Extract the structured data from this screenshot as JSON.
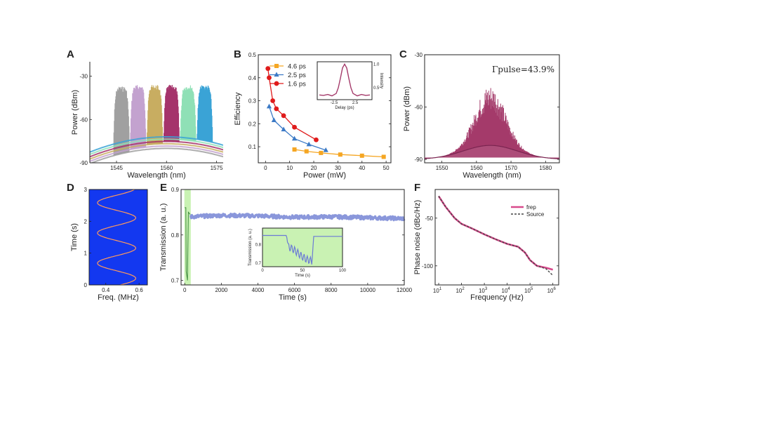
{
  "colors": {
    "maroon": "#a43a6a",
    "blue_panel": "#1338f0",
    "green_shade": "#c9f2b3",
    "trace_blue": "#8a97db",
    "orange": "#f5a623",
    "legend_blue": "#3c7ac6",
    "red": "#e01b1b",
    "pink": "#d84a8c",
    "dark": "#444444",
    "spectra": [
      "#a0a0a0",
      "#c3a2cf",
      "#c8ad61",
      "#a5336b",
      "#8fe0b6",
      "#3aa3d6"
    ]
  },
  "panels": {
    "A": {
      "label": "A"
    },
    "B": {
      "label": "B"
    },
    "C": {
      "label": "C"
    },
    "D": {
      "label": "D"
    },
    "E": {
      "label": "E"
    },
    "F": {
      "label": "F"
    }
  },
  "chart_data": [
    {
      "panel": "A",
      "type": "line",
      "xlabel": "Wavelength (nm)",
      "ylabel": "Power (dBm)",
      "xlim": [
        1537,
        1577
      ],
      "ylim": [
        -90,
        -20
      ],
      "xticks": [
        1545,
        1560,
        1575
      ],
      "yticks": [
        -30,
        -60,
        -90
      ],
      "xtick_labels": [
        "1545",
        "1560",
        "1575"
      ],
      "ytick_labels": [
        "-30",
        "-60",
        "-90"
      ],
      "series": [
        {
          "center": 1546.5,
          "peak": -37,
          "color_index": 0
        },
        {
          "center": 1551.5,
          "peak": -36,
          "color_index": 1
        },
        {
          "center": 1556.5,
          "peak": -36,
          "color_index": 2
        },
        {
          "center": 1561.5,
          "peak": -36,
          "color_index": 3
        },
        {
          "center": 1566.5,
          "peak": -36,
          "color_index": 4
        },
        {
          "center": 1571.5,
          "peak": -36,
          "color_index": 5
        }
      ]
    },
    {
      "panel": "B",
      "type": "line",
      "xlabel": "Power (mW)",
      "ylabel": "Efficiency",
      "xlim": [
        -3,
        52
      ],
      "ylim": [
        0.03,
        0.5
      ],
      "xticks": [
        0,
        10,
        20,
        30,
        40,
        50
      ],
      "yticks": [
        0.1,
        0.2,
        0.3,
        0.4,
        0.5
      ],
      "xtick_labels": [
        "0",
        "10",
        "20",
        "30",
        "40",
        "50"
      ],
      "ytick_labels": [
        "0.1",
        "0.2",
        "0.3",
        "0.4",
        "0.5"
      ],
      "series": [
        {
          "name": "4.6 ps",
          "color": "#f5a623",
          "marker": "square",
          "x": [
            12,
            17,
            23,
            31,
            40,
            49
          ],
          "y": [
            0.088,
            0.08,
            0.073,
            0.066,
            0.061,
            0.056
          ]
        },
        {
          "name": "2.5 ps",
          "color": "#3c7ac6",
          "marker": "triangle",
          "x": [
            1.5,
            3.5,
            7.5,
            12,
            18,
            25
          ],
          "y": [
            0.275,
            0.215,
            0.175,
            0.135,
            0.11,
            0.085
          ]
        },
        {
          "name": "1.6 ps",
          "color": "#e01b1b",
          "marker": "circle",
          "x": [
            1,
            1.5,
            3,
            4.5,
            7.5,
            12,
            21
          ],
          "y": [
            0.44,
            0.4,
            0.3,
            0.265,
            0.235,
            0.185,
            0.13
          ]
        }
      ],
      "inset": {
        "xlabel": "Delay (ps)",
        "ylabel": "Intensity",
        "xticks": [
          "-2.5",
          "2.5"
        ],
        "yticks": [
          "0.5",
          "1.0"
        ],
        "x": [
          -6,
          -5,
          -4,
          -3,
          -2,
          -1.5,
          -1,
          -0.5,
          0,
          0.5,
          1,
          1.5,
          2,
          3,
          4,
          5,
          6
        ],
        "y": [
          0.35,
          0.34,
          0.36,
          0.33,
          0.38,
          0.5,
          0.7,
          0.92,
          1.0,
          0.92,
          0.7,
          0.5,
          0.38,
          0.33,
          0.36,
          0.34,
          0.35
        ]
      }
    },
    {
      "panel": "C",
      "type": "area",
      "xlabel": "Wavelength (nm)",
      "ylabel": "Power (dBm)",
      "annotation": "Γpulse=43.9%",
      "xlim": [
        1545,
        1584
      ],
      "ylim": [
        -92,
        -30
      ],
      "xticks": [
        1550,
        1560,
        1570,
        1580
      ],
      "yticks": [
        -30,
        -60,
        -90
      ],
      "xtick_labels": [
        "1550",
        "1560",
        "1570",
        "1580"
      ],
      "ytick_labels": [
        "-30",
        "-60",
        "-90"
      ],
      "envelope_peak": -47,
      "floor_peak": -82,
      "edge_level": -90,
      "center": 1564
    },
    {
      "panel": "D",
      "type": "heatmap",
      "xlabel": "Freq. (MHz)",
      "ylabel": "Time (s)",
      "xlim": [
        0.3,
        0.65
      ],
      "ylim": [
        0,
        3
      ],
      "xticks": [
        0.4,
        0.6
      ],
      "yticks": [
        0,
        1,
        2,
        3
      ],
      "xtick_labels": [
        "0.4",
        "0.6"
      ],
      "ytick_labels": [
        "0",
        "1",
        "2",
        "3"
      ],
      "trace": {
        "center": 0.465,
        "amplitude": 0.115,
        "period_s": 0.95
      }
    },
    {
      "panel": "E",
      "type": "line",
      "xlabel": "Time (s)",
      "ylabel": "Transmission (a. u.)",
      "xlim": [
        -200,
        12000
      ],
      "ylim": [
        0.69,
        0.9
      ],
      "xticks": [
        0,
        2000,
        4000,
        6000,
        8000,
        10000,
        12000
      ],
      "yticks": [
        0.7,
        0.8,
        0.9
      ],
      "xtick_labels": [
        "0",
        "2000",
        "4000",
        "6000",
        "8000",
        "10000",
        "12000"
      ],
      "ytick_labels": [
        "0.7",
        "0.8",
        "0.9"
      ],
      "shaded_range": [
        -20,
        330
      ],
      "x": [
        300,
        2000,
        4000,
        6000,
        8000,
        10000,
        12000
      ],
      "y": [
        0.84,
        0.843,
        0.842,
        0.839,
        0.84,
        0.838,
        0.836
      ],
      "inset": {
        "xlabel": "Time (s)",
        "ylabel": "Transmission (a. u.)",
        "xticks": [
          "0",
          "50",
          "100"
        ],
        "yticks": [
          "0.7",
          "0.8"
        ],
        "x": [
          0,
          30,
          32,
          40,
          48,
          55,
          62,
          64,
          100
        ],
        "y": [
          0.85,
          0.85,
          0.79,
          0.77,
          0.74,
          0.72,
          0.71,
          0.845,
          0.845
        ]
      }
    },
    {
      "panel": "F",
      "type": "line",
      "xlabel": "Frequency (Hz)",
      "ylabel": "Phase noise (dBc/Hz)",
      "xscale": "log",
      "xlim": [
        7,
        1800000
      ],
      "ylim": [
        -120,
        -20
      ],
      "xticks": [
        10,
        100,
        1000,
        10000,
        100000,
        1000000
      ],
      "yticks": [
        -50,
        -100
      ],
      "xtick_base": "10",
      "xtick_exps": [
        "1",
        "2",
        "3",
        "4",
        "5",
        "6"
      ],
      "ytick_labels": [
        "-50",
        "-100"
      ],
      "legend": [
        "frep",
        "Source"
      ],
      "series": [
        {
          "name": "frep",
          "color": "#d84a8c",
          "x": [
            10,
            20,
            50,
            100,
            300,
            1000,
            3000,
            10000,
            30000,
            60000,
            100000,
            200000,
            500000,
            1000000
          ],
          "y": [
            -27,
            -38,
            -50,
            -56,
            -61,
            -67,
            -72,
            -77,
            -80,
            -86,
            -94,
            -100,
            -102,
            -104
          ]
        },
        {
          "name": "Source",
          "color": "#444444",
          "x": [
            10,
            20,
            50,
            100,
            300,
            1000,
            3000,
            10000,
            30000,
            60000,
            100000,
            200000,
            500000,
            1000000
          ],
          "y": [
            -27,
            -38,
            -50,
            -56,
            -61,
            -67,
            -72,
            -77,
            -80,
            -86,
            -94,
            -100,
            -103,
            -110
          ]
        }
      ]
    }
  ]
}
